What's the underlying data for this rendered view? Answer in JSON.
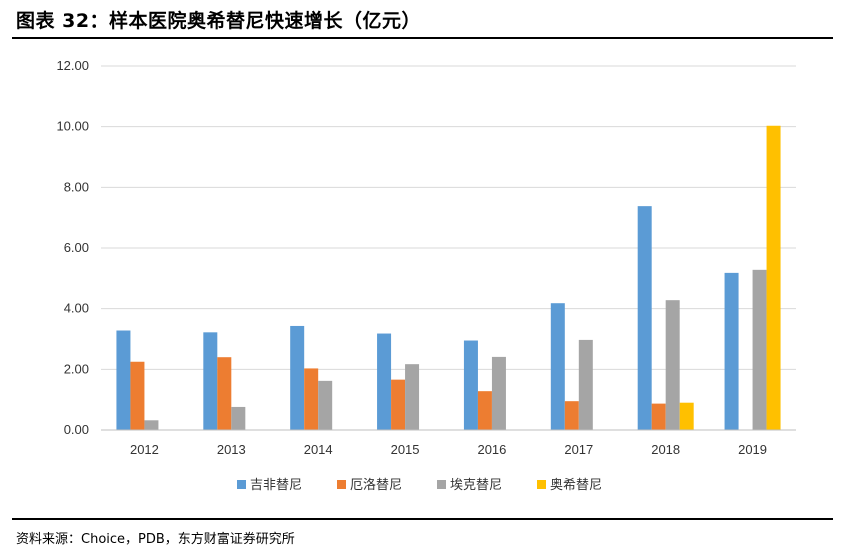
{
  "header": {
    "title": "图表 32：样本医院奥希替尼快速增长（亿元）"
  },
  "footer": {
    "source": "资料来源：Choice，PDB，东方财富证券研究所"
  },
  "chart_data": {
    "type": "bar",
    "title": "",
    "xlabel": "",
    "ylabel": "",
    "categories": [
      "2012",
      "2013",
      "2014",
      "2015",
      "2016",
      "2017",
      "2018",
      "2019"
    ],
    "y_tick_labels": [
      "0.00",
      "2.00",
      "4.00",
      "6.00",
      "8.00",
      "10.00",
      "12.00"
    ],
    "ylim": [
      0,
      12
    ],
    "grid": true,
    "legend_position": "bottom",
    "series": [
      {
        "name": "吉非替尼",
        "color": "#5B9BD5",
        "values": [
          3.28,
          3.22,
          3.43,
          3.18,
          2.95,
          4.18,
          7.38,
          5.18
        ]
      },
      {
        "name": "厄洛替尼",
        "color": "#ED7D31",
        "values": [
          2.25,
          2.4,
          2.03,
          1.66,
          1.28,
          0.95,
          0.87,
          null
        ]
      },
      {
        "name": "埃克替尼",
        "color": "#A5A5A5",
        "values": [
          0.32,
          0.76,
          1.62,
          2.17,
          2.41,
          2.97,
          4.28,
          5.28
        ]
      },
      {
        "name": "奥希替尼",
        "color": "#FFC000",
        "values": [
          null,
          null,
          null,
          null,
          null,
          null,
          0.9,
          10.03
        ]
      }
    ]
  }
}
